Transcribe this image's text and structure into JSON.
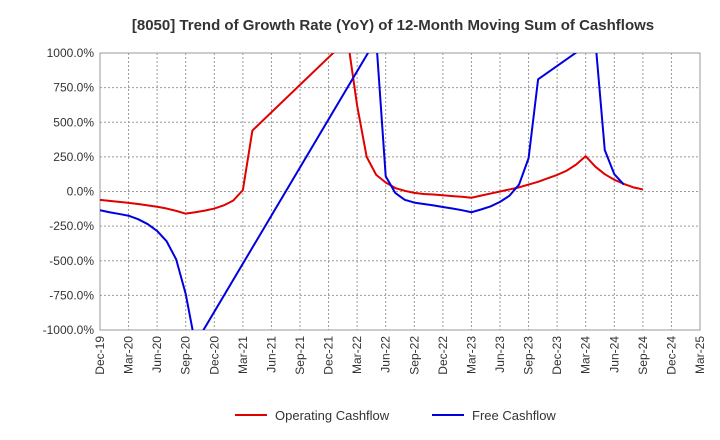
{
  "chart_data": {
    "type": "line",
    "title": "[8050]  Trend of Growth Rate (YoY) of 12-Month Moving Sum of Cashflows",
    "ylim": [
      -1000,
      1000
    ],
    "y_ticks": [
      1000,
      750,
      500,
      250,
      0,
      -250,
      -500,
      -750,
      -1000
    ],
    "y_tick_labels": [
      "1000.0%",
      "750.0%",
      "500.0%",
      "250.0%",
      "0.0%",
      "-250.0%",
      "-500.0%",
      "-750.0%",
      "-1000.0%"
    ],
    "x_ticks": [
      "Dec-19",
      "Mar-20",
      "Jun-20",
      "Sep-20",
      "Dec-20",
      "Mar-21",
      "Jun-21",
      "Sep-21",
      "Dec-21",
      "Mar-22",
      "Jun-22",
      "Sep-22",
      "Dec-22",
      "Mar-23",
      "Jun-23",
      "Sep-23",
      "Dec-23",
      "Mar-24",
      "Jun-24",
      "Sep-24",
      "Dec-24",
      "Mar-25"
    ],
    "grid": true,
    "legend_position": "bottom",
    "series": [
      {
        "name": "Operating Cashflow",
        "color": "#e00000",
        "points": [
          {
            "x": "2019-12",
            "y": -60
          },
          {
            "x": "2020-01",
            "y": -68
          },
          {
            "x": "2020-02",
            "y": -75
          },
          {
            "x": "2020-03",
            "y": -82
          },
          {
            "x": "2020-04",
            "y": -90
          },
          {
            "x": "2020-05",
            "y": -100
          },
          {
            "x": "2020-06",
            "y": -110
          },
          {
            "x": "2020-07",
            "y": -123
          },
          {
            "x": "2020-08",
            "y": -140
          },
          {
            "x": "2020-09",
            "y": -160
          },
          {
            "x": "2020-10",
            "y": -150
          },
          {
            "x": "2020-11",
            "y": -138
          },
          {
            "x": "2020-12",
            "y": -123
          },
          {
            "x": "2021-01",
            "y": -100
          },
          {
            "x": "2021-02",
            "y": -65
          },
          {
            "x": "2021-03",
            "y": 10
          },
          {
            "x": "2021-04",
            "y": 440
          },
          {
            "x": "2022-02",
            "y": 1100
          },
          {
            "x": "2022-03",
            "y": 620
          },
          {
            "x": "2022-04",
            "y": 250
          },
          {
            "x": "2022-05",
            "y": 120
          },
          {
            "x": "2022-06",
            "y": 65
          },
          {
            "x": "2022-07",
            "y": 25
          },
          {
            "x": "2022-08",
            "y": 5
          },
          {
            "x": "2022-09",
            "y": -10
          },
          {
            "x": "2022-10",
            "y": -18
          },
          {
            "x": "2022-11",
            "y": -22
          },
          {
            "x": "2022-12",
            "y": -27
          },
          {
            "x": "2023-01",
            "y": -33
          },
          {
            "x": "2023-02",
            "y": -38
          },
          {
            "x": "2023-03",
            "y": -45
          },
          {
            "x": "2023-04",
            "y": -30
          },
          {
            "x": "2023-05",
            "y": -15
          },
          {
            "x": "2023-06",
            "y": 0
          },
          {
            "x": "2023-07",
            "y": 15
          },
          {
            "x": "2023-08",
            "y": 30
          },
          {
            "x": "2023-09",
            "y": 50
          },
          {
            "x": "2023-10",
            "y": 70
          },
          {
            "x": "2023-11",
            "y": 95
          },
          {
            "x": "2023-12",
            "y": 120
          },
          {
            "x": "2024-01",
            "y": 150
          },
          {
            "x": "2024-02",
            "y": 195
          },
          {
            "x": "2024-03",
            "y": 255
          },
          {
            "x": "2024-04",
            "y": 180
          },
          {
            "x": "2024-05",
            "y": 125
          },
          {
            "x": "2024-06",
            "y": 85
          },
          {
            "x": "2024-07",
            "y": 55
          },
          {
            "x": "2024-08",
            "y": 30
          },
          {
            "x": "2024-09",
            "y": 15
          }
        ]
      },
      {
        "name": "Free Cashflow",
        "color": "#0000e0",
        "points": [
          {
            "x": "2019-12",
            "y": -135
          },
          {
            "x": "2020-01",
            "y": -150
          },
          {
            "x": "2020-02",
            "y": -162
          },
          {
            "x": "2020-03",
            "y": -175
          },
          {
            "x": "2020-04",
            "y": -200
          },
          {
            "x": "2020-05",
            "y": -235
          },
          {
            "x": "2020-06",
            "y": -285
          },
          {
            "x": "2020-07",
            "y": -360
          },
          {
            "x": "2020-08",
            "y": -490
          },
          {
            "x": "2020-09",
            "y": -740
          },
          {
            "x": "2020-10",
            "y": -1100
          },
          {
            "x": "2022-05",
            "y": 1100
          },
          {
            "x": "2022-06",
            "y": 110
          },
          {
            "x": "2022-07",
            "y": -10
          },
          {
            "x": "2022-08",
            "y": -60
          },
          {
            "x": "2022-09",
            "y": -80
          },
          {
            "x": "2022-10",
            "y": -90
          },
          {
            "x": "2022-11",
            "y": -100
          },
          {
            "x": "2022-12",
            "y": -112
          },
          {
            "x": "2023-01",
            "y": -123
          },
          {
            "x": "2023-02",
            "y": -135
          },
          {
            "x": "2023-03",
            "y": -150
          },
          {
            "x": "2023-04",
            "y": -130
          },
          {
            "x": "2023-05",
            "y": -108
          },
          {
            "x": "2023-06",
            "y": -75
          },
          {
            "x": "2023-07",
            "y": -30
          },
          {
            "x": "2023-08",
            "y": 50
          },
          {
            "x": "2023-09",
            "y": 240
          },
          {
            "x": "2023-10",
            "y": 810
          },
          {
            "x": "2024-04",
            "y": 1100
          },
          {
            "x": "2024-05",
            "y": 300
          },
          {
            "x": "2024-06",
            "y": 125
          },
          {
            "x": "2024-07",
            "y": 50
          }
        ]
      }
    ]
  }
}
